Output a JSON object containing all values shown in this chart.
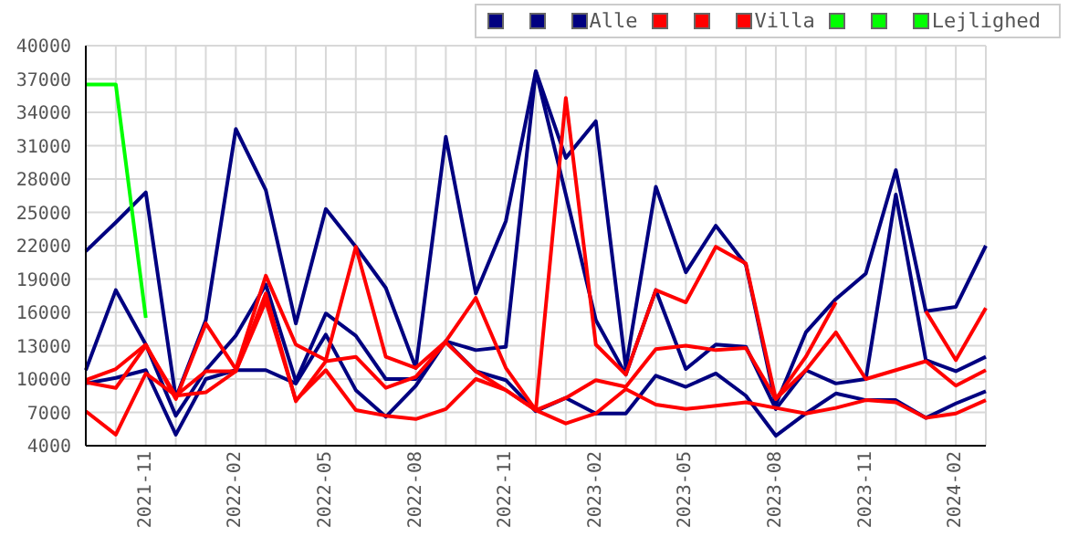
{
  "chart_data": {
    "type": "line",
    "categories": [
      null,
      null,
      "2021-11",
      null,
      null,
      "2022-02",
      null,
      null,
      "2022-05",
      null,
      null,
      "2022-08",
      null,
      null,
      "2022-11",
      null,
      null,
      "2023-02",
      null,
      null,
      "2023-05",
      null,
      null,
      "2023-08",
      null,
      null,
      "2023-11",
      null,
      null,
      "2024-02",
      null
    ],
    "series": [
      {
        "color": "#000080",
        "values": [
          21500,
          24100,
          26800,
          8300,
          15300,
          32500,
          27000,
          15000,
          25300,
          21900,
          18200,
          11000,
          31800,
          17700,
          24200,
          37700,
          29900,
          33200,
          11000,
          27300,
          19600,
          23800,
          20300,
          7700,
          14200,
          17200,
          19500,
          28800,
          16100,
          16500,
          22000
        ]
      },
      {
        "color": "#000080",
        "values": [
          10800,
          18000,
          13100,
          6700,
          10800,
          13900,
          18500,
          9800,
          15900,
          13900,
          10000,
          10000,
          13400,
          12600,
          12900,
          37700,
          26600,
          15300,
          10400,
          18000,
          10900,
          13100,
          12900,
          7300,
          10800,
          9600,
          10000,
          26600,
          11700,
          10700,
          12000
        ]
      },
      {
        "name": "Alle",
        "color": "#000080",
        "values": [
          9600,
          10100,
          10800,
          5000,
          10000,
          10800,
          10800,
          9600,
          14000,
          9000,
          6600,
          9400,
          13400,
          10700,
          9900,
          7100,
          8300,
          6900,
          6900,
          10300,
          9300,
          10500,
          8500,
          4900,
          6900,
          8700,
          8100,
          8100,
          6500,
          7800,
          8900
        ]
      },
      {
        "color": "#ff0000",
        "values": [
          9900,
          10900,
          13100,
          8200,
          15000,
          10900,
          19300,
          13100,
          11700,
          21900,
          12000,
          11000,
          13400,
          17300,
          11000,
          7200,
          35300,
          13100,
          10400,
          18000,
          16900,
          21900,
          20400,
          8200,
          12000,
          16900,
          null,
          null,
          16100,
          11700,
          16400
        ]
      },
      {
        "color": "#ff0000",
        "values": [
          9700,
          9200,
          13000,
          8500,
          10700,
          10700,
          17700,
          8000,
          11600,
          12000,
          9200,
          10200,
          13300,
          10700,
          9000,
          7200,
          8300,
          9900,
          9300,
          12700,
          13000,
          12600,
          12800,
          8200,
          10800,
          14200,
          10000,
          10800,
          11600,
          9400,
          10800
        ]
      },
      {
        "name": "Villa",
        "color": "#ff0000",
        "values": [
          7100,
          5000,
          10500,
          8500,
          8800,
          10700,
          17000,
          8100,
          10800,
          7200,
          6700,
          6400,
          7300,
          10000,
          9000,
          7200,
          6000,
          6900,
          9100,
          7700,
          7300,
          7600,
          7900,
          7400,
          6900,
          7400,
          8100,
          7900,
          6500,
          6900,
          8100
        ]
      },
      {
        "color": "#00ff00",
        "values": [
          null,
          null,
          null,
          null,
          null,
          null,
          null,
          null,
          null,
          null,
          null,
          null,
          null,
          null,
          null,
          null,
          null,
          null,
          null,
          null,
          null,
          null,
          null,
          null,
          null,
          null,
          null,
          null,
          null,
          null,
          null
        ]
      },
      {
        "color": "#00ff00",
        "values": [
          null,
          null,
          null,
          null,
          null,
          null,
          null,
          null,
          null,
          null,
          null,
          null,
          null,
          null,
          null,
          null,
          null,
          null,
          null,
          null,
          null,
          null,
          null,
          null,
          null,
          null,
          null,
          null,
          null,
          null,
          null
        ]
      },
      {
        "name": "Lejlighed",
        "color": "#00ff00",
        "values": [
          36500,
          36500,
          15500,
          null,
          null,
          null,
          null,
          null,
          null,
          null,
          null,
          null,
          null,
          null,
          null,
          null,
          null,
          null,
          null,
          null,
          null,
          null,
          null,
          null,
          null,
          null,
          null,
          null,
          null,
          null,
          null
        ]
      }
    ],
    "ylim": [
      4000,
      40000
    ],
    "yticks": [
      4000,
      7000,
      10000,
      13000,
      16000,
      19000,
      22000,
      25000,
      28000,
      31000,
      34000,
      37000,
      40000
    ],
    "grid": true,
    "legend": "top right"
  }
}
